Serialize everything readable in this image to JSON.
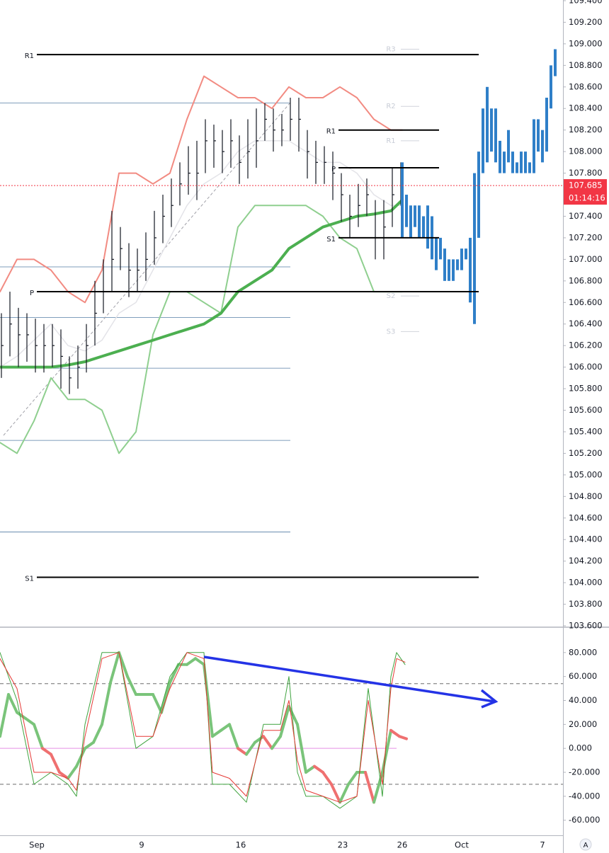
{
  "chart_data": [
    {
      "type": "ohlc",
      "xlim": [
        0,
        198
      ],
      "ylim": [
        103.6,
        109.4
      ],
      "yticks": [
        {
          "value": 109.4,
          "label": "109.400"
        },
        {
          "value": 109.2,
          "label": "109.200"
        },
        {
          "value": 109.0,
          "label": "109.000"
        },
        {
          "value": 108.8,
          "label": "108.800"
        },
        {
          "value": 108.6,
          "label": "108.600"
        },
        {
          "value": 108.4,
          "label": "108.400"
        },
        {
          "value": 108.2,
          "label": "108.200"
        },
        {
          "value": 108.0,
          "label": "108.000"
        },
        {
          "value": 107.8,
          "label": "107.800"
        },
        {
          "value": 107.6,
          "label": "107.600"
        },
        {
          "value": 107.4,
          "label": "107.400"
        },
        {
          "value": 107.2,
          "label": "107.200"
        },
        {
          "value": 107.0,
          "label": "107.000"
        },
        {
          "value": 106.8,
          "label": "106.800"
        },
        {
          "value": 106.6,
          "label": "106.600"
        },
        {
          "value": 106.4,
          "label": "106.400"
        },
        {
          "value": 106.2,
          "label": "106.200"
        },
        {
          "value": 106.0,
          "label": "106.000"
        },
        {
          "value": 105.8,
          "label": "105.800"
        },
        {
          "value": 105.6,
          "label": "105.600"
        },
        {
          "value": 105.4,
          "label": "105.400"
        },
        {
          "value": 105.2,
          "label": "105.200"
        },
        {
          "value": 105.0,
          "label": "105.000"
        },
        {
          "value": 104.8,
          "label": "104.800"
        },
        {
          "value": 104.6,
          "label": "104.600"
        },
        {
          "value": 104.4,
          "label": "104.400"
        },
        {
          "value": 104.2,
          "label": "104.200"
        },
        {
          "value": 104.0,
          "label": "104.000"
        },
        {
          "value": 103.8,
          "label": "103.800"
        },
        {
          "value": 103.6,
          "label": "103.600"
        }
      ],
      "ohlc": {
        "color": "#131722",
        "x": [
          0,
          3,
          6,
          9,
          12,
          15,
          18,
          21,
          24,
          27,
          30,
          33,
          36,
          39,
          42,
          45,
          48,
          51,
          54,
          57,
          60,
          63,
          66,
          69,
          72,
          75,
          78,
          81,
          84,
          87,
          90,
          93,
          96,
          99,
          102,
          105,
          108,
          111,
          114,
          117,
          120,
          123,
          126,
          129,
          132,
          135,
          138,
          141
        ],
        "high": [
          106.5,
          106.7,
          106.55,
          106.5,
          106.45,
          106.4,
          106.4,
          106.35,
          106.1,
          106.2,
          106.4,
          106.8,
          107.0,
          107.45,
          107.3,
          107.15,
          107.1,
          107.25,
          107.45,
          107.6,
          107.75,
          107.9,
          108.05,
          108.1,
          108.3,
          108.25,
          108.2,
          108.3,
          108.15,
          108.3,
          108.4,
          108.45,
          108.4,
          108.35,
          108.5,
          108.5,
          108.2,
          108.1,
          108.05,
          108.0,
          107.8,
          107.6,
          107.7,
          107.75,
          107.55,
          107.55,
          107.85,
          107.9
        ],
        "low": [
          105.9,
          106.1,
          106.0,
          106.05,
          105.95,
          105.95,
          106.0,
          105.8,
          105.75,
          105.8,
          105.95,
          106.2,
          106.5,
          106.7,
          106.9,
          106.65,
          106.7,
          106.8,
          106.95,
          107.15,
          107.3,
          107.5,
          107.6,
          107.55,
          107.8,
          107.85,
          107.8,
          107.85,
          107.7,
          107.75,
          107.85,
          108.1,
          108.0,
          108.05,
          108.1,
          108.0,
          107.75,
          107.7,
          107.7,
          107.55,
          107.35,
          107.2,
          107.3,
          107.4,
          107.0,
          107.0,
          107.3,
          107.5
        ],
        "close": [
          106.2,
          106.4,
          106.3,
          106.3,
          106.2,
          106.2,
          106.2,
          106.1,
          105.9,
          106.0,
          106.2,
          106.5,
          106.7,
          107.0,
          107.1,
          106.9,
          106.9,
          107.0,
          107.2,
          107.4,
          107.5,
          107.7,
          107.8,
          107.8,
          108.1,
          108.1,
          108.0,
          108.1,
          107.9,
          108.0,
          108.1,
          108.3,
          108.2,
          108.2,
          108.3,
          108.3,
          108.0,
          107.9,
          107.9,
          107.8,
          107.6,
          107.4,
          107.5,
          107.6,
          107.2,
          107.3,
          107.6,
          107.7
        ]
      },
      "projection": {
        "color": "#2f7fc8",
        "x": [
          142,
          143.5,
          145,
          146.5,
          148,
          149.5,
          151,
          152.5,
          154,
          155.5,
          157,
          158.5,
          160,
          161.5,
          163,
          164.5,
          166,
          167.5,
          169,
          170.5,
          172,
          173.5,
          175,
          176.5,
          178,
          179.5,
          181,
          182.5,
          184,
          185.5,
          187,
          188.5,
          190,
          191.5,
          193,
          194.5,
          196
        ],
        "high": [
          107.9,
          107.6,
          107.5,
          107.5,
          107.5,
          107.4,
          107.5,
          107.4,
          107.2,
          107.2,
          107.1,
          107.0,
          107.0,
          107.0,
          107.1,
          107.1,
          107.2,
          107.8,
          108.0,
          108.4,
          108.6,
          108.4,
          108.4,
          108.1,
          108.0,
          108.2,
          108.0,
          107.9,
          108.0,
          108.0,
          107.9,
          108.3,
          108.3,
          108.2,
          108.5,
          108.8,
          108.95
        ],
        "low": [
          107.2,
          107.3,
          107.2,
          107.3,
          107.2,
          107.2,
          107.1,
          107.0,
          106.9,
          107.0,
          106.8,
          106.8,
          106.8,
          106.9,
          106.9,
          107.0,
          106.6,
          106.4,
          107.2,
          107.8,
          107.9,
          108.0,
          107.9,
          107.8,
          107.8,
          107.9,
          107.8,
          107.8,
          107.8,
          107.8,
          107.8,
          107.8,
          108.0,
          107.9,
          108.0,
          108.4,
          108.7
        ]
      },
      "line_x": [
        0,
        6,
        12,
        18,
        24,
        30,
        36,
        42,
        48,
        54,
        60,
        66,
        72,
        78,
        84,
        90,
        96,
        102,
        108,
        114,
        120,
        126,
        132,
        138,
        142
      ],
      "lines": [
        {
          "color": "#e3e3e8",
          "width": 1.5,
          "values": [
            106.0,
            106.1,
            106.25,
            106.4,
            106.2,
            106.15,
            106.25,
            106.5,
            106.6,
            106.9,
            107.2,
            107.5,
            107.7,
            107.8,
            108.0,
            108.1,
            108.1,
            108.1,
            108.0,
            107.9,
            107.9,
            107.8,
            107.6,
            107.5,
            107.5
          ]
        },
        {
          "color": "#f28b82",
          "width": 2,
          "values": [
            106.7,
            107.0,
            107.0,
            106.9,
            106.7,
            106.6,
            106.9,
            107.8,
            107.8,
            107.7,
            107.8,
            108.3,
            108.7,
            108.6,
            108.5,
            108.5,
            108.4,
            108.6,
            108.5,
            108.5,
            108.6,
            108.5,
            108.3,
            108.2,
            108.2
          ]
        },
        {
          "color": "#8fcf8f",
          "width": 2,
          "values": [
            105.3,
            105.2,
            105.5,
            105.9,
            105.7,
            105.7,
            105.6,
            105.2,
            105.4,
            106.3,
            106.7,
            106.7,
            106.6,
            106.5,
            107.3,
            107.5,
            107.5,
            107.5,
            107.5,
            107.4,
            107.2,
            107.1,
            106.7,
            106.7,
            106.7
          ]
        },
        {
          "color": "#4caf50",
          "width": 4,
          "values": [
            106.0,
            106.0,
            106.0,
            106.0,
            106.02,
            106.05,
            106.1,
            106.15,
            106.2,
            106.25,
            106.3,
            106.35,
            106.4,
            106.5,
            106.7,
            106.8,
            106.9,
            107.1,
            107.2,
            107.3,
            107.35,
            107.4,
            107.42,
            107.45,
            107.55
          ]
        }
      ],
      "pivots": [
        {
          "label": "R1",
          "value": 108.9,
          "from": 13,
          "to": 169
        },
        {
          "label": "P",
          "value": 106.7,
          "from": 13,
          "to": 169
        },
        {
          "label": "S1",
          "value": 104.05,
          "from": 13,
          "to": 169
        },
        {
          "label": "R1",
          "value": 108.2,
          "from": 119.5,
          "to": 155
        },
        {
          "label": "P",
          "value": 107.85,
          "from": 119.5,
          "to": 155
        },
        {
          "label": "S1",
          "value": 107.2,
          "from": 119.5,
          "to": 155
        }
      ],
      "faint_pivots": [
        {
          "label": "R3",
          "value": 108.95
        },
        {
          "label": "R2",
          "value": 108.42
        },
        {
          "label": "R1",
          "value": 108.1
        },
        {
          "label": "S2",
          "value": 106.66
        },
        {
          "label": "S3",
          "value": 106.33
        }
      ],
      "levels": {
        "color": "#2a5c8f",
        "to": 102.5,
        "values": [
          108.45,
          106.93,
          106.46,
          105.99,
          105.32,
          104.47
        ]
      },
      "last_price": {
        "value": 107.685,
        "label": "107.685",
        "countdown": "01:14:16",
        "color": "#f23645"
      }
    },
    {
      "type": "line",
      "xlim": [
        0,
        198
      ],
      "ylim": [
        -72,
        100
      ],
      "yticks": [
        {
          "value": 80,
          "label": "80.000"
        },
        {
          "value": 60,
          "label": "60.000"
        },
        {
          "value": 40,
          "label": "40.000"
        },
        {
          "value": 20,
          "label": "20.000"
        },
        {
          "value": 0,
          "label": "0.000"
        },
        {
          "value": -20,
          "label": "-20.000"
        },
        {
          "value": -40,
          "label": "-40.000"
        },
        {
          "value": -60,
          "label": "-60.000"
        }
      ],
      "xticks": [
        {
          "value": 13,
          "label": "Sep"
        },
        {
          "value": 50,
          "label": "9"
        },
        {
          "value": 85,
          "label": "16"
        },
        {
          "value": 121,
          "label": "23"
        },
        {
          "value": 142,
          "label": "26"
        },
        {
          "value": 163,
          "label": "Oct"
        },
        {
          "value": 191.5,
          "label": "7"
        }
      ],
      "dashed_levels": [
        54,
        -30
      ],
      "zero_color": "#e58fe5",
      "series": [
        {
          "color": "#7ac47a",
          "down_color": "#ef7070",
          "width": 4,
          "x": [
            0,
            3,
            6,
            9,
            12,
            15,
            18,
            21,
            24,
            27,
            30,
            33,
            36,
            39,
            42,
            45,
            48,
            51,
            54,
            57,
            60,
            63,
            66,
            69,
            72,
            75,
            78,
            81,
            84,
            87,
            90,
            93,
            96,
            99,
            102,
            105,
            108,
            111,
            114,
            117,
            120,
            123,
            126,
            129,
            132,
            135,
            138,
            141,
            143.5
          ],
          "values": [
            10,
            45,
            30,
            25,
            20,
            0,
            -5,
            -20,
            -25,
            -15,
            0,
            5,
            20,
            55,
            80,
            60,
            45,
            45,
            45,
            30,
            55,
            70,
            70,
            75,
            70,
            10,
            15,
            20,
            0,
            -5,
            5,
            10,
            0,
            10,
            35,
            20,
            -20,
            -15,
            -20,
            -30,
            -45,
            -30,
            -20,
            -20,
            -45,
            -20,
            15,
            10,
            8
          ]
        },
        {
          "color": "#3fa33f",
          "width": 1,
          "x": [
            0,
            6,
            12,
            18,
            24,
            27,
            30,
            36,
            42,
            48,
            54,
            60,
            66,
            72,
            75,
            81,
            87,
            93,
            99,
            102,
            105,
            108,
            114,
            120,
            126,
            130,
            135,
            138,
            140,
            143
          ],
          "values": [
            80,
            40,
            -30,
            -20,
            -30,
            -40,
            20,
            80,
            80,
            0,
            10,
            60,
            80,
            80,
            -30,
            -30,
            -45,
            20,
            20,
            60,
            -20,
            -40,
            -40,
            -50,
            -40,
            50,
            -40,
            60,
            80,
            70
          ]
        },
        {
          "color": "#e53935",
          "width": 1,
          "x": [
            0,
            6,
            12,
            18,
            24,
            27,
            30,
            36,
            42,
            48,
            54,
            60,
            66,
            72,
            75,
            81,
            87,
            93,
            99,
            102,
            105,
            108,
            114,
            120,
            126,
            130,
            135,
            138,
            140,
            143
          ],
          "values": [
            75,
            50,
            -20,
            -20,
            -25,
            -35,
            10,
            75,
            80,
            10,
            10,
            50,
            80,
            75,
            -20,
            -25,
            -40,
            15,
            15,
            40,
            -10,
            -35,
            -40,
            -45,
            -40,
            40,
            -30,
            50,
            75,
            72
          ]
        }
      ]
    }
  ]
}
